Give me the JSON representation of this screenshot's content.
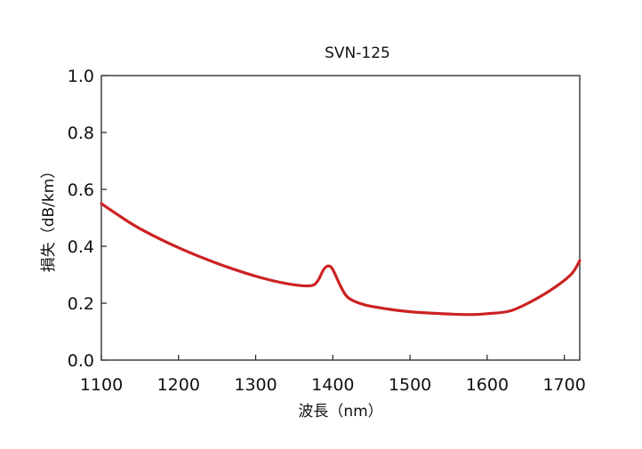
{
  "chart_data": {
    "type": "line",
    "title": "SVN-125",
    "xlabel": "波長（nm）",
    "ylabel": "損失（dB/km）",
    "xlim": [
      1100,
      1720
    ],
    "ylim": [
      0.0,
      1.0
    ],
    "x_ticks": [
      "1100",
      "1200",
      "1300",
      "1400",
      "1500",
      "1600",
      "1700"
    ],
    "y_ticks": [
      "0.0",
      "0.2",
      "0.4",
      "0.6",
      "0.8",
      "1.0"
    ],
    "grid": false,
    "series": [
      {
        "color": "#cc2222",
        "x": [
          1100,
          1120,
          1150,
          1200,
          1250,
          1300,
          1340,
          1370,
          1380,
          1388,
          1394,
          1400,
          1410,
          1420,
          1440,
          1470,
          1500,
          1550,
          1580,
          1600,
          1630,
          1660,
          1690,
          1710,
          1720
        ],
        "y": [
          0.55,
          0.513,
          0.462,
          0.395,
          0.34,
          0.295,
          0.269,
          0.261,
          0.277,
          0.318,
          0.331,
          0.318,
          0.26,
          0.219,
          0.195,
          0.18,
          0.17,
          0.162,
          0.16,
          0.163,
          0.173,
          0.21,
          0.26,
          0.305,
          0.35
        ]
      }
    ]
  }
}
